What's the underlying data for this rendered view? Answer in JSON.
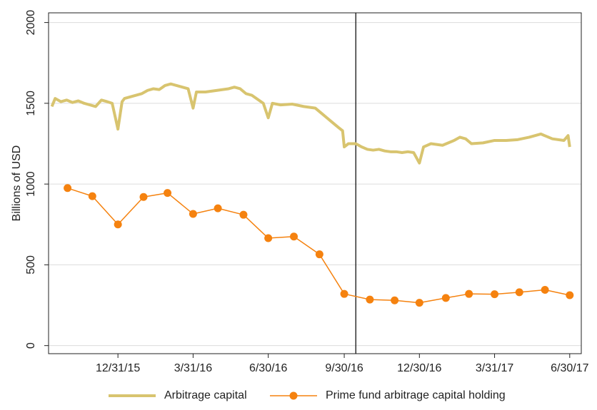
{
  "chart_data": {
    "type": "line",
    "y_label": "Billions of USD",
    "xlim": [
      "2015-10-08",
      "2017-07-14"
    ],
    "xticks": [
      {
        "value": "2015-12-31",
        "label": "12/31/15"
      },
      {
        "value": "2016-03-31",
        "label": "3/31/16"
      },
      {
        "value": "2016-06-30",
        "label": "6/30/16"
      },
      {
        "value": "2016-09-30",
        "label": "9/30/16"
      },
      {
        "value": "2016-12-30",
        "label": "12/30/16"
      },
      {
        "value": "2017-03-31",
        "label": "3/31/17"
      },
      {
        "value": "2017-06-30",
        "label": "6/30/17"
      }
    ],
    "ylim": [
      -50,
      2060
    ],
    "yticks": [
      0,
      500,
      1000,
      1500,
      2000
    ],
    "grid": true,
    "vline": "2016-10-14",
    "legend": "bottom",
    "series": [
      {
        "name": "Arbitrage capital",
        "color": "#d8c46f",
        "markers": false,
        "x": [
          "2015-10-12",
          "2015-10-16",
          "2015-10-23",
          "2015-10-30",
          "2015-11-06",
          "2015-11-13",
          "2015-11-20",
          "2015-11-27",
          "2015-12-04",
          "2015-12-11",
          "2015-12-18",
          "2015-12-24",
          "2015-12-31",
          "2016-01-05",
          "2016-01-08",
          "2016-01-15",
          "2016-01-22",
          "2016-01-29",
          "2016-02-05",
          "2016-02-12",
          "2016-02-19",
          "2016-02-26",
          "2016-03-04",
          "2016-03-11",
          "2016-03-18",
          "2016-03-25",
          "2016-03-31",
          "2016-04-04",
          "2016-04-15",
          "2016-04-29",
          "2016-05-13",
          "2016-05-20",
          "2016-05-27",
          "2016-06-03",
          "2016-06-10",
          "2016-06-24",
          "2016-06-30",
          "2016-07-05",
          "2016-07-15",
          "2016-07-29",
          "2016-08-12",
          "2016-08-26",
          "2016-09-02",
          "2016-09-09",
          "2016-09-16",
          "2016-09-23",
          "2016-09-28",
          "2016-09-30",
          "2016-10-05",
          "2016-10-14",
          "2016-10-21",
          "2016-10-28",
          "2016-11-04",
          "2016-11-11",
          "2016-11-18",
          "2016-11-25",
          "2016-12-02",
          "2016-12-09",
          "2016-12-16",
          "2016-12-23",
          "2016-12-30",
          "2017-01-04",
          "2017-01-13",
          "2017-01-27",
          "2017-02-10",
          "2017-02-17",
          "2017-02-24",
          "2017-03-03",
          "2017-03-17",
          "2017-03-31",
          "2017-04-14",
          "2017-04-28",
          "2017-05-12",
          "2017-05-26",
          "2017-06-09",
          "2017-06-23",
          "2017-06-28",
          "2017-06-30"
        ],
        "values": [
          1480,
          1530,
          1510,
          1520,
          1505,
          1515,
          1500,
          1490,
          1480,
          1520,
          1510,
          1500,
          1340,
          1510,
          1530,
          1540,
          1550,
          1560,
          1580,
          1590,
          1585,
          1610,
          1620,
          1610,
          1600,
          1590,
          1470,
          1570,
          1570,
          1580,
          1590,
          1600,
          1590,
          1560,
          1550,
          1500,
          1410,
          1500,
          1490,
          1495,
          1480,
          1470,
          1440,
          1410,
          1380,
          1350,
          1330,
          1230,
          1250,
          1250,
          1230,
          1215,
          1210,
          1215,
          1205,
          1200,
          1200,
          1195,
          1200,
          1195,
          1130,
          1230,
          1250,
          1240,
          1270,
          1290,
          1280,
          1250,
          1255,
          1270,
          1270,
          1275,
          1290,
          1310,
          1280,
          1270,
          1300,
          1230
        ]
      },
      {
        "name": "Prime fund arbitrage capital holding",
        "color": "#f5820f",
        "markers": true,
        "x": [
          "2015-10-31",
          "2015-11-30",
          "2015-12-31",
          "2016-01-31",
          "2016-02-29",
          "2016-03-31",
          "2016-04-30",
          "2016-05-31",
          "2016-06-30",
          "2016-07-31",
          "2016-08-31",
          "2016-09-30",
          "2016-10-31",
          "2016-11-30",
          "2016-12-30",
          "2017-01-31",
          "2017-02-28",
          "2017-03-31",
          "2017-04-30",
          "2017-05-31",
          "2017-06-30"
        ],
        "values": [
          975,
          925,
          750,
          920,
          945,
          815,
          850,
          810,
          665,
          675,
          565,
          320,
          285,
          280,
          265,
          295,
          320,
          318,
          330,
          345,
          312
        ]
      }
    ]
  }
}
